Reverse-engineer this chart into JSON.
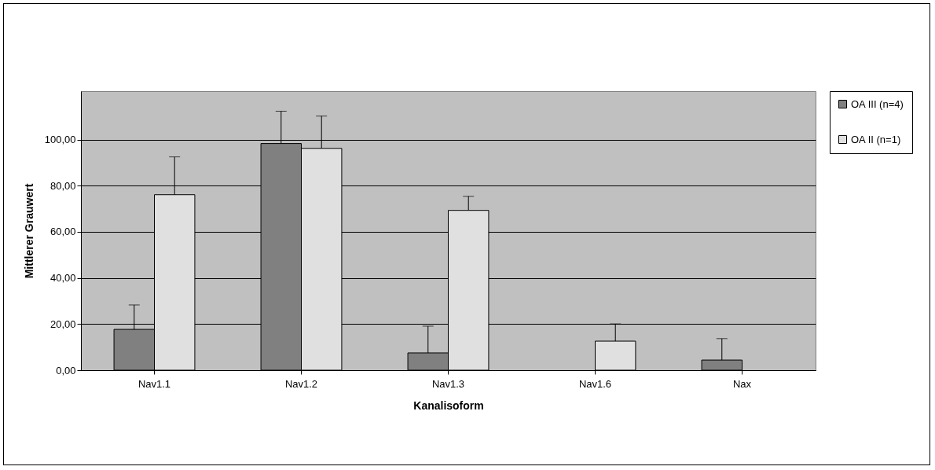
{
  "chart_data": {
    "type": "bar",
    "xlabel": "Kanalisoform",
    "ylabel": "Mittlerer Grauwert",
    "categories": [
      "Nav1.1",
      "Nav1.2",
      "Nav1.3",
      "Nav1.6",
      "Nax"
    ],
    "series": [
      {
        "name": "OA III (n=4)",
        "color": "#808080",
        "values": [
          17.7,
          98.3,
          7.5,
          null,
          4.4
        ],
        "errors": [
          [
            17.7,
            28.3
          ],
          [
            98.3,
            112.3
          ],
          [
            7.5,
            19.1
          ],
          null,
          [
            4.4,
            13.7
          ]
        ]
      },
      {
        "name": "OA II (n=1)",
        "color": "#e0e0e0",
        "values": [
          76.1,
          96.2,
          69.3,
          12.6,
          null
        ],
        "errors": [
          [
            76.1,
            92.5
          ],
          [
            96.2,
            110.2
          ],
          [
            69.3,
            75.4
          ],
          [
            12.6,
            20.1
          ],
          null
        ]
      }
    ],
    "ylim": [
      0,
      121
    ],
    "yticks": [
      {
        "value": 0,
        "label": "0,00"
      },
      {
        "value": 20,
        "label": "20,00"
      },
      {
        "value": 40,
        "label": "40,00"
      },
      {
        "value": 60,
        "label": "60,00"
      },
      {
        "value": 80,
        "label": "80,00"
      },
      {
        "value": 100,
        "label": "100,00"
      }
    ],
    "grid": "y",
    "legend": "right"
  }
}
